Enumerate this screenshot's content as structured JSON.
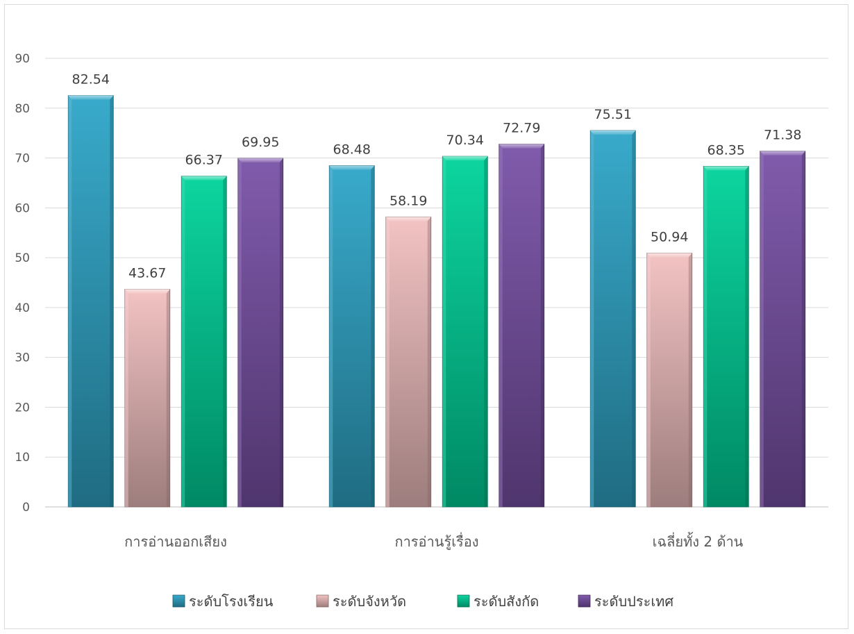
{
  "chart_data": {
    "type": "bar",
    "categories": [
      "การอ่านออกเสียง",
      "การอ่านรู้เรื่อง",
      "เฉลี่ยทั้ง 2 ด้าน"
    ],
    "series": [
      {
        "name": "ระดับโรงเรียน",
        "values": [
          82.54,
          68.48,
          75.51
        ],
        "value_labels": [
          "82.54",
          "68.48",
          "75.51"
        ],
        "color": "#2fa6c8"
      },
      {
        "name": "ระดับจังหวัด",
        "values": [
          43.67,
          58.19,
          50.94
        ],
        "value_labels": [
          "43.67",
          "58.19",
          "50.94"
        ],
        "color": "#f2c0c0"
      },
      {
        "name": "ระดับสังกัด",
        "values": [
          66.37,
          70.34,
          68.35
        ],
        "value_labels": [
          "66.37",
          "70.34",
          "68.35"
        ],
        "color": "#00d39a"
      },
      {
        "name": "ระดับประเทศ",
        "values": [
          69.95,
          72.79,
          71.38
        ],
        "value_labels": [
          "69.95",
          "72.79",
          "71.38"
        ],
        "color": "#7a52a8"
      }
    ],
    "yticks": [
      "0",
      "10",
      "20",
      "30",
      "40",
      "50",
      "60",
      "70",
      "80",
      "90"
    ],
    "ylim": [
      0,
      90
    ],
    "grid": true,
    "legend": "bottom",
    "title": "",
    "xlabel": "",
    "ylabel": ""
  }
}
